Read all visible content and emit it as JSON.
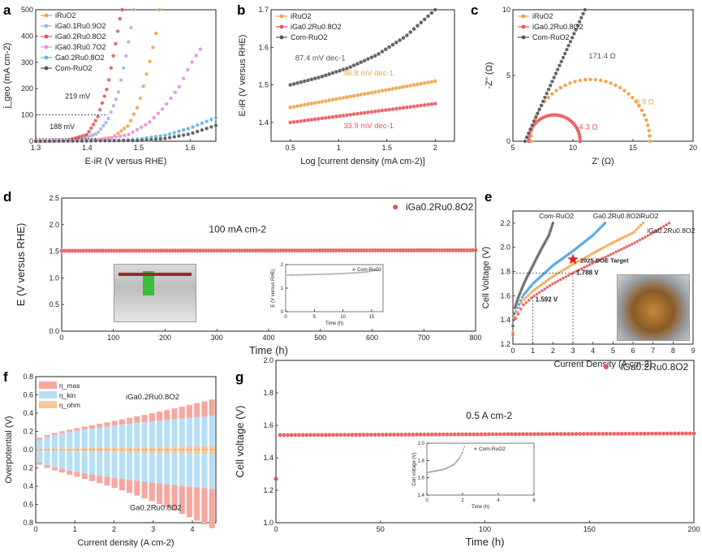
{
  "panels": {
    "a": "a",
    "b": "b",
    "c": "c",
    "d": "d",
    "e": "e",
    "f": "f",
    "g": "g"
  },
  "chart_data": [
    {
      "panel": "a",
      "type": "line",
      "xlabel": "E-iR (V versus RHE)",
      "ylabel": "j_geo (mA cm-2)",
      "xlim": [
        1.3,
        1.65
      ],
      "ylim": [
        0,
        500
      ],
      "xticks": [
        1.3,
        1.4,
        1.5,
        1.6
      ],
      "yticks": [
        0,
        100,
        200,
        300,
        400,
        500
      ],
      "legend_position": "top-left",
      "annotations": [
        {
          "text": "219 mV",
          "x": 1.42,
          "y": 100
        },
        {
          "text": "188 mV",
          "x": 1.39,
          "y": 10
        }
      ],
      "series": [
        {
          "name": "iRuO2",
          "color": "#f0a24a",
          "points": [
            [
              1.3,
              0
            ],
            [
              1.4,
              2
            ],
            [
              1.45,
              15
            ],
            [
              1.48,
              60
            ],
            [
              1.5,
              140
            ],
            [
              1.52,
              290
            ],
            [
              1.535,
              420
            ],
            [
              1.54,
              500
            ]
          ]
        },
        {
          "name": "iGa0.1Ru0.9O2",
          "color": "#a7b0e6",
          "points": [
            [
              1.3,
              0
            ],
            [
              1.38,
              3
            ],
            [
              1.42,
              30
            ],
            [
              1.44,
              80
            ],
            [
              1.46,
              180
            ],
            [
              1.475,
              320
            ],
            [
              1.485,
              430
            ],
            [
              1.49,
              500
            ]
          ]
        },
        {
          "name": "iGa0.2Ru0.8O2",
          "color": "#e8545a",
          "points": [
            [
              1.3,
              0
            ],
            [
              1.36,
              2
            ],
            [
              1.4,
              25
            ],
            [
              1.42,
              90
            ],
            [
              1.44,
              210
            ],
            [
              1.455,
              370
            ],
            [
              1.465,
              480
            ],
            [
              1.468,
              500
            ]
          ]
        },
        {
          "name": "iGa0.3Ru0.7O2",
          "color": "#e88ae0",
          "points": [
            [
              1.3,
              0
            ],
            [
              1.42,
              3
            ],
            [
              1.48,
              25
            ],
            [
              1.52,
              70
            ],
            [
              1.55,
              130
            ],
            [
              1.58,
              210
            ],
            [
              1.6,
              290
            ],
            [
              1.62,
              350
            ]
          ]
        },
        {
          "name": "Ga0.2Ru0.8O2",
          "color": "#5ab4e6",
          "points": [
            [
              1.3,
              0
            ],
            [
              1.45,
              2
            ],
            [
              1.5,
              8
            ],
            [
              1.55,
              22
            ],
            [
              1.6,
              50
            ],
            [
              1.65,
              90
            ]
          ]
        },
        {
          "name": "Com-RuO2",
          "color": "#555555",
          "points": [
            [
              1.3,
              0
            ],
            [
              1.5,
              3
            ],
            [
              1.55,
              10
            ],
            [
              1.6,
              28
            ],
            [
              1.65,
              60
            ]
          ]
        }
      ]
    },
    {
      "panel": "b",
      "type": "line",
      "xlabel": "Log [current density (mA cm-2)]",
      "ylabel": "E-iR (V versus RHE)",
      "xlim": [
        0.3,
        2.2
      ],
      "ylim": [
        1.35,
        1.7
      ],
      "xticks": [
        0.5,
        1.0,
        1.5,
        2.0
      ],
      "yticks": [
        1.4,
        1.5,
        1.6,
        1.7
      ],
      "legend_position": "top-left",
      "series": [
        {
          "name": "iRuO2",
          "color": "#f0a24a",
          "slope_label": "46.8 mV dec-1",
          "points": [
            [
              0.5,
              1.44
            ],
            [
              2.0,
              1.51
            ]
          ]
        },
        {
          "name": "iGa0.2Ru0.8O2",
          "color": "#e8545a",
          "slope_label": "33.9 mV dec-1",
          "points": [
            [
              0.5,
              1.4
            ],
            [
              2.0,
              1.45
            ]
          ]
        },
        {
          "name": "Com-RuO2",
          "color": "#555555",
          "slope_label": "87.4 mV dec-1",
          "points": [
            [
              0.5,
              1.5
            ],
            [
              0.8,
              1.52
            ],
            [
              1.1,
              1.545
            ],
            [
              1.4,
              1.58
            ],
            [
              1.7,
              1.63
            ],
            [
              2.0,
              1.7
            ]
          ]
        }
      ]
    },
    {
      "panel": "c",
      "type": "scatter",
      "xlabel": "Z' (Ω)",
      "ylabel": "-Z'' (Ω)",
      "xlim": [
        5,
        20
      ],
      "ylim": [
        0,
        10
      ],
      "xticks": [
        5,
        10,
        15,
        20
      ],
      "yticks": [
        0,
        5,
        10
      ],
      "legend_position": "top-left",
      "series": [
        {
          "name": "iRuO2",
          "color": "#f0a24a",
          "arc_label": "9.9 Ω",
          "arc": {
            "start": 6.5,
            "diameter": 9.9,
            "height": 4.7
          }
        },
        {
          "name": "iGa0.2Ru0.8O2",
          "color": "#e8545a",
          "arc_label": "4.3 Ω",
          "arc": {
            "start": 6.3,
            "diameter": 4.3,
            "height": 2.0
          }
        },
        {
          "name": "Com-RuO2",
          "color": "#555555",
          "arc_label": "171.4 Ω",
          "line": [
            [
              6.0,
              0
            ],
            [
              7.5,
              3
            ],
            [
              9.0,
              6
            ],
            [
              10.5,
              9
            ],
            [
              11.0,
              10
            ]
          ]
        }
      ]
    },
    {
      "panel": "d",
      "type": "line",
      "xlabel": "Time (h)",
      "ylabel": "E (V versus RHE)",
      "xlim": [
        0,
        800
      ],
      "ylim": [
        0,
        2.5
      ],
      "xticks": [
        0,
        100,
        200,
        300,
        400,
        500,
        600,
        700,
        800
      ],
      "yticks": [
        0.0,
        0.5,
        1.0,
        1.5,
        2.0,
        2.5
      ],
      "legend_position": "top-right",
      "annotation": "100 mA cm-2",
      "series": [
        {
          "name": "iGa0.2Ru0.8O2",
          "color": "#e8545a",
          "points": [
            [
              0,
              1.51
            ],
            [
              800,
              1.52
            ]
          ]
        }
      ],
      "inset": {
        "xlabel": "Time (h)",
        "ylabel": "E (V versus RHE)",
        "xlim": [
          0,
          17
        ],
        "ylim": [
          0,
          2
        ],
        "xticks": [
          0,
          5,
          10,
          15
        ],
        "yticks": [
          0,
          1,
          2
        ],
        "series": [
          {
            "name": "Com-RuO2",
            "color": "#888888",
            "points": [
              [
                0,
                1.55
              ],
              [
                5,
                1.58
              ],
              [
                10,
                1.62
              ],
              [
                14,
                1.68
              ],
              [
                16,
                1.78
              ]
            ]
          }
        ]
      }
    },
    {
      "panel": "e",
      "type": "line",
      "xlabel": "Current Density (A cm-2)",
      "ylabel": "Cell Voltage (V)",
      "xlim": [
        0,
        9
      ],
      "ylim": [
        1.2,
        2.3
      ],
      "xticks": [
        0,
        1,
        2,
        3,
        4,
        5,
        6,
        7,
        8,
        9
      ],
      "yticks": [
        1.2,
        1.4,
        1.6,
        1.8,
        2.0,
        2.2
      ],
      "annotations": [
        {
          "text": "1.592 V",
          "x": 1,
          "y": 1.592
        },
        {
          "text": "1.788 V",
          "x": 3,
          "y": 1.788
        },
        {
          "text": "2025 DOE Target",
          "x": 3,
          "y": 1.9
        }
      ],
      "series": [
        {
          "name": "Com-RuO2",
          "color": "#555555",
          "points": [
            [
              0,
              1.35
            ],
            [
              0.1,
              1.5
            ],
            [
              0.3,
              1.6
            ],
            [
              0.6,
              1.72
            ],
            [
              1.0,
              1.85
            ],
            [
              1.4,
              1.98
            ],
            [
              1.8,
              2.1
            ],
            [
              2.0,
              2.2
            ]
          ]
        },
        {
          "name": "Ga0.2Ru0.8O2",
          "color": "#3a9ae0",
          "points": [
            [
              0,
              1.3
            ],
            [
              0.1,
              1.45
            ],
            [
              0.5,
              1.6
            ],
            [
              1.0,
              1.7
            ],
            [
              2.0,
              1.85
            ],
            [
              3.0,
              1.97
            ],
            [
              4.0,
              2.1
            ],
            [
              4.6,
              2.2
            ]
          ]
        },
        {
          "name": "iRuO2",
          "color": "#f0a24a",
          "points": [
            [
              0,
              1.3
            ],
            [
              0.1,
              1.42
            ],
            [
              0.5,
              1.56
            ],
            [
              1.0,
              1.64
            ],
            [
              2.0,
              1.76
            ],
            [
              3.0,
              1.86
            ],
            [
              4.0,
              1.95
            ],
            [
              5.0,
              2.04
            ],
            [
              6.0,
              2.12
            ],
            [
              6.5,
              2.2
            ]
          ]
        },
        {
          "name": "iGa0.2Ru0.8O2",
          "color": "#e8545a",
          "points": [
            [
              0,
              1.28
            ],
            [
              0.1,
              1.4
            ],
            [
              0.5,
              1.52
            ],
            [
              1.0,
              1.592
            ],
            [
              2.0,
              1.7
            ],
            [
              3.0,
              1.788
            ],
            [
              4.0,
              1.87
            ],
            [
              5.0,
              1.95
            ],
            [
              6.0,
              2.03
            ],
            [
              7.0,
              2.12
            ],
            [
              7.8,
              2.2
            ]
          ]
        }
      ]
    },
    {
      "panel": "f",
      "type": "bar",
      "xlabel": "Current density (A cm-2)",
      "ylabel": "Overpotential (V)",
      "xlim": [
        0,
        4.6
      ],
      "ylim": [
        -0.8,
        0.8
      ],
      "xticks": [
        0,
        1,
        2,
        3,
        4
      ],
      "yticks": [
        0.8,
        0.6,
        0.4,
        0.2,
        0.0,
        0.2,
        0.4,
        0.6,
        0.8
      ],
      "legend": [
        "η_mas",
        "η_kin",
        "η_ohm"
      ],
      "legend_colors": [
        "#f7a7a0",
        "#b6dff5",
        "#f5c79a"
      ],
      "labels": {
        "top": "iGa0.2Ru0.8O2",
        "bottom": "Ga0.2Ru0.8O2"
      },
      "top_total_at_max": 0.5,
      "bottom_total_at_max": 0.78
    },
    {
      "panel": "g",
      "type": "line",
      "xlabel": "Time (h)",
      "ylabel": "Cell voltage (V)",
      "xlim": [
        0,
        200
      ],
      "ylim": [
        1.0,
        2.0
      ],
      "xticks": [
        0,
        50,
        100,
        150,
        200
      ],
      "yticks": [
        1.0,
        1.2,
        1.4,
        1.6,
        1.8,
        2.0
      ],
      "legend_position": "top-right",
      "annotation": "0.5 A cm-2",
      "series": [
        {
          "name": "iGa0.2Ru0.8O2",
          "color": "#e8545a",
          "points": [
            [
              0,
              1.27
            ],
            [
              2,
              1.54
            ],
            [
              200,
              1.55
            ]
          ]
        }
      ],
      "inset": {
        "xlabel": "Time (h)",
        "ylabel": "Cell voltage (V)",
        "xlim": [
          0,
          6
        ],
        "ylim": [
          1.4,
          2.0
        ],
        "xticks": [
          0,
          2,
          4,
          6
        ],
        "yticks": [
          1.4,
          1.6,
          1.8,
          2.0
        ],
        "series": [
          {
            "name": "Com-RuO2",
            "color": "#888888",
            "points": [
              [
                0,
                1.66
              ],
              [
                0.5,
                1.68
              ],
              [
                1.0,
                1.7
              ],
              [
                1.5,
                1.75
              ],
              [
                1.8,
                1.82
              ],
              [
                2.0,
                1.9
              ],
              [
                2.1,
                1.96
              ]
            ]
          }
        ]
      }
    }
  ]
}
